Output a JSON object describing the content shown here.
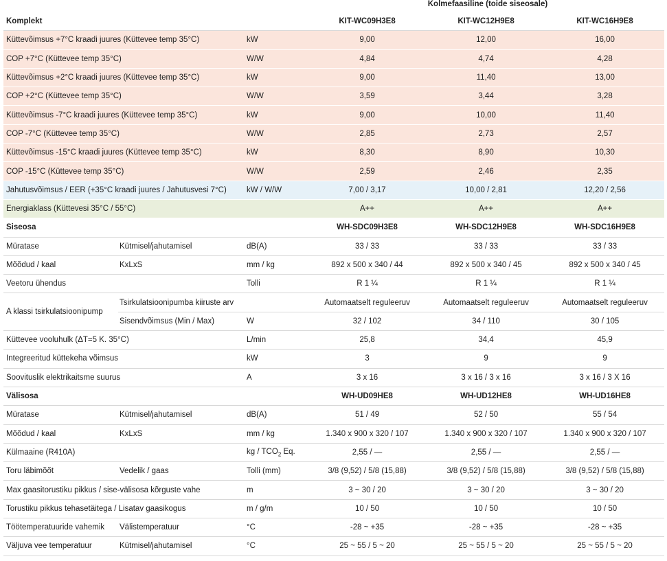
{
  "top_caption": "Kolmefaasiline (toide siseosale)",
  "komplekt": {
    "title": "Komplekt",
    "models": [
      "KIT-WC09H3E8",
      "KIT-WC12H9E8",
      "KIT-WC16H9E8"
    ],
    "rows": [
      {
        "label": "Küttevõimsus +7°C kraadi juures (Küttevee temp 35°C)",
        "unit": "kW",
        "values": [
          "9,00",
          "12,00",
          "16,00"
        ]
      },
      {
        "label": "COP +7°C (Küttevee temp 35°C)",
        "unit": "W/W",
        "values": [
          "4,84",
          "4,74",
          "4,28"
        ]
      },
      {
        "label": "Küttevõimsus +2°C kraadi juures (Küttevee temp 35°C)",
        "unit": "kW",
        "values": [
          "9,00",
          "11,40",
          "13,00"
        ]
      },
      {
        "label": "COP +2°C (Küttevee temp 35°C)",
        "unit": "W/W",
        "values": [
          "3,59",
          "3,44",
          "3,28"
        ]
      },
      {
        "label": "Küttevõimsus -7°C kraadi juures (Küttevee temp 35°C)",
        "unit": "kW",
        "values": [
          "9,00",
          "10,00",
          "11,40"
        ]
      },
      {
        "label": "COP -7°C (Küttevee temp 35°C)",
        "unit": "W/W",
        "values": [
          "2,85",
          "2,73",
          "2,57"
        ]
      },
      {
        "label": "Küttevõimsus -15°C kraadi juures (Küttevee temp 35°C)",
        "unit": "kW",
        "values": [
          "8,30",
          "8,90",
          "10,30"
        ]
      },
      {
        "label": "COP -15°C (Küttevee temp 35°C)",
        "unit": "W/W",
        "values": [
          "2,59",
          "2,46",
          "2,35"
        ]
      }
    ],
    "cooling": {
      "label": "Jahutusvõimsus / EER (+35°C kraadi juures / Jahutusvesi 7°C)",
      "unit": "kW / W/W",
      "values": [
        "7,00 / 3,17",
        "10,00 / 2,81",
        "12,20 / 2,56"
      ]
    },
    "energy": {
      "label": "Energiaklass (Küttevesi 35°C / 55°C)",
      "unit": "",
      "values": [
        "A++",
        "A++",
        "A++"
      ]
    }
  },
  "siseosa": {
    "title": "Siseosa",
    "models": [
      "WH-SDC09H3E8",
      "WH-SDC12H9E8",
      "WH-SDC16H9E8"
    ],
    "noise": {
      "label": "Müratase",
      "sub": "Kütmisel/jahutamisel",
      "unit": "dB(A)",
      "values": [
        "33 / 33",
        "33 / 33",
        "33 / 33"
      ]
    },
    "dims": {
      "label": "Mõõdud / kaal",
      "sub": "KxLxS",
      "unit": "mm / kg",
      "values": [
        "892 x 500 x 340 / 44",
        "892 x 500 x 340 / 45",
        "892 x 500 x 340 / 45"
      ]
    },
    "water_conn": {
      "label": "Veetoru ühendus",
      "unit": "Tolli",
      "values": [
        "R 1 ¼",
        "R 1 ¼",
        "R 1 ¼"
      ]
    },
    "pump": {
      "label": "A klassi tsirkulatsioonipump",
      "speed": {
        "sub": "Tsirkulatsioonipumba kiiruste arv",
        "unit": "",
        "values": [
          "Automaatselt reguleeruv",
          "Automaatselt reguleeruv",
          "Automaatselt reguleeruv"
        ]
      },
      "power": {
        "sub": "Sisendvõimsus (Min / Max)",
        "unit": "W",
        "values": [
          "32 / 102",
          "34 / 110",
          "30 / 105"
        ]
      }
    },
    "flow": {
      "label": "Küttevee vooluhulk  (ΔT=5 K. 35°C)",
      "unit": "L/min",
      "values": [
        "25,8",
        "34,4",
        "45,9"
      ]
    },
    "heater": {
      "label": "Integreeritud küttekeha võimsus",
      "unit": "kW",
      "values": [
        "3",
        "9",
        "9"
      ]
    },
    "breaker": {
      "label": "Soovituslik elektrikaitsme suurus",
      "unit": "A",
      "values": [
        "3 x 16",
        "3 x 16 / 3 x 16",
        "3 x 16 / 3 X 16"
      ]
    }
  },
  "valisosa": {
    "title": "Välisosa",
    "models": [
      "WH-UD09HE8",
      "WH-UD12HE8",
      "WH-UD16HE8"
    ],
    "noise": {
      "label": "Müratase",
      "sub": "Kütmisel/jahutamisel",
      "unit": "dB(A)",
      "values": [
        "51 / 49",
        "52 / 50",
        "55 / 54"
      ]
    },
    "dims": {
      "label": "Mõõdud / kaal",
      "sub": "KxLxS",
      "unit": "mm / kg",
      "values": [
        "1.340 x 900 x 320 / 107",
        "1.340 x 900 x 320 / 107",
        "1.340 x 900 x 320 / 107"
      ]
    },
    "refrigerant": {
      "label": "Külmaaine (R410A)",
      "unit_main": "kg / TCO",
      "unit_sub": "2",
      "unit_end": " Eq.",
      "values": [
        "2,55 / —",
        "2,55 / —",
        "2,55 / —"
      ]
    },
    "pipe": {
      "label": "Toru läbimõõt",
      "sub": "Vedelik / gaas",
      "unit": "Tolli (mm)",
      "values": [
        "3/8 (9,52) / 5/8 (15,88)",
        "3/8 (9,52) / 5/8 (15,88)",
        "3/8 (9,52) / 5/8 (15,88)"
      ]
    },
    "max_len": {
      "label": "Max gaasitorustiku pikkus / sise-välisosa kõrguste vahe",
      "unit": "m",
      "values": [
        "3 ~ 30 / 20",
        "3 ~ 30 / 20",
        "3 ~ 30 / 20"
      ]
    },
    "pipe_len": {
      "label": "Torustiku pikkus tehasetäitega / Lisatav gaasikogus",
      "unit": "m / g/m",
      "values": [
        "10 / 50",
        "10 / 50",
        "10 / 50"
      ]
    },
    "op_temp": {
      "label": "Töötemperatuuride vahemik",
      "sub": "Välistemperatuur",
      "unit": "°C",
      "values": [
        "-28 ~ +35",
        "-28 ~ +35",
        "-28 ~ +35"
      ]
    },
    "out_temp": {
      "label": "Väljuva vee temperatuur",
      "sub": "Kütmisel/jahutamisel",
      "unit": "°C",
      "values": [
        "25 ~ 55 / 5 ~ 20",
        "25 ~ 55 / 5 ~ 20",
        "25 ~ 55 / 5 ~ 20"
      ]
    }
  }
}
